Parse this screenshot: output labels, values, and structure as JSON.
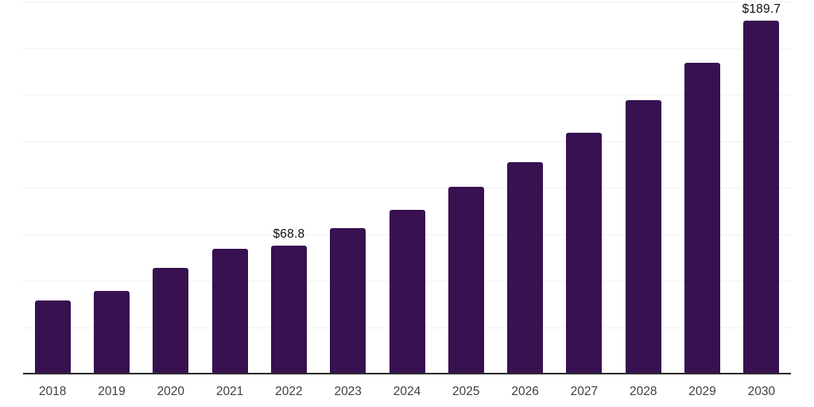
{
  "chart": {
    "bar_color": "#371150",
    "axis_color": "#2b2b2b",
    "gridline_color": "#f2f2f2",
    "data_label_color": "#0d0d0d",
    "tick_label_color": "#3f3f3f",
    "background_color": "#ffffff"
  },
  "chart_data": {
    "type": "bar",
    "categories": [
      "2018",
      "2019",
      "2020",
      "2021",
      "2022",
      "2023",
      "2024",
      "2025",
      "2026",
      "2027",
      "2028",
      "2029",
      "2030"
    ],
    "values": [
      39.3,
      44.4,
      56.8,
      67.2,
      68.8,
      78.3,
      88.2,
      100.4,
      113.8,
      129.6,
      147.1,
      167.1,
      189.7
    ],
    "data_labels": [
      "",
      "",
      "",
      "",
      "$68.8",
      "",
      "",
      "",
      "",
      "",
      "",
      "",
      "$189.7"
    ],
    "title": "",
    "xlabel": "",
    "ylabel": "",
    "ylim": [
      0,
      200
    ],
    "gridline_interval": 25,
    "grid": true,
    "legend": "none"
  }
}
